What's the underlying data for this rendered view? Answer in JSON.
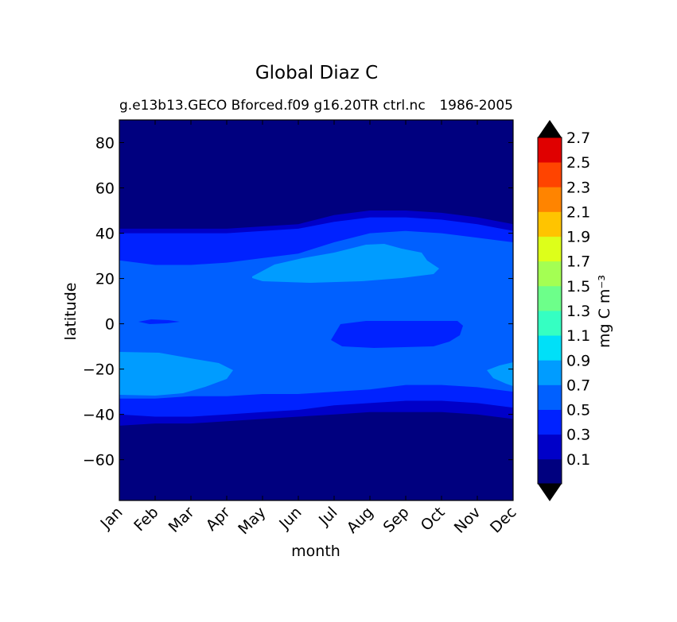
{
  "chart_data": {
    "type": "heatmap",
    "title": "Global Diaz C",
    "subtitle_left": "g.e13b13.GECO Bforced.f09 g16.20TR ctrl.nc",
    "subtitle_right": "1986-2005",
    "xlabel": "month",
    "ylabel": "latitude",
    "x_categories": [
      "Jan",
      "Feb",
      "Mar",
      "Apr",
      "May",
      "Jun",
      "Jul",
      "Aug",
      "Sep",
      "Oct",
      "Nov",
      "Dec"
    ],
    "ylim": [
      -78,
      90
    ],
    "y_ticks": [
      -60,
      -40,
      -20,
      0,
      20,
      40,
      60,
      80
    ],
    "y_tick_labels": [
      "−60",
      "−40",
      "−20",
      "0",
      "20",
      "40",
      "60",
      "80"
    ],
    "colorbar": {
      "label": "mg C m⁻³",
      "extend": "both",
      "tick_labels": [
        "0.1",
        "0.3",
        "0.5",
        "0.7",
        "0.9",
        "1.1",
        "1.3",
        "1.5",
        "1.7",
        "1.9",
        "2.1",
        "2.3",
        "2.5",
        "2.7"
      ],
      "levels": [
        0.0,
        0.2,
        0.4,
        0.6,
        0.8,
        1.0,
        1.2,
        1.4,
        1.6,
        1.8,
        2.0,
        2.2,
        2.4,
        2.6,
        2.8
      ],
      "colors": [
        "#00007f",
        "#0000c8",
        "#0022ff",
        "#0060ff",
        "#009cff",
        "#00e0f8",
        "#35ffc2",
        "#6dff8a",
        "#a4ff53",
        "#ddff1a",
        "#ffc400",
        "#ff8400",
        "#ff4400",
        "#e00000",
        "#a00000",
        "#7f0000"
      ],
      "under_color": "#000000",
      "over_color": "#000000"
    },
    "regions": [
      {
        "level": "0.1-0.3",
        "color": "#0000c8",
        "lat_south_edge": [
          -45,
          -44,
          -44,
          -43,
          -42,
          -41,
          -40,
          -39,
          -39,
          -39,
          -40,
          -42
        ],
        "lat_north_edge": [
          42,
          42,
          42,
          42,
          43,
          44,
          48,
          50,
          50,
          49,
          47,
          44
        ]
      },
      {
        "level": "0.3-0.5",
        "color": "#0022ff",
        "lat_south_edge": [
          -40,
          -41,
          -41,
          -40,
          -39,
          -38,
          -36,
          -35,
          -34,
          -34,
          -35,
          -37
        ],
        "lat_north_edge": [
          40,
          40,
          40,
          40,
          41,
          42,
          45,
          47,
          47,
          46,
          44,
          41
        ]
      },
      {
        "level": "0.5-0.7",
        "color": "#0060ff",
        "lat_south_edge": [
          -33,
          -33,
          -32,
          -32,
          -31,
          -31,
          -30,
          -29,
          -27,
          -27,
          -28,
          -30
        ],
        "lat_north_edge": [
          28,
          26,
          26,
          27,
          29,
          31,
          36,
          40,
          41,
          40,
          38,
          36
        ]
      }
    ],
    "patches": [
      {
        "level": "0.7-0.9",
        "color": "#009cff",
        "where": "Jan-Apr, -33 to -13"
      },
      {
        "level": "0.7-0.9",
        "color": "#009cff",
        "where": "May-Sep, 18 to 35"
      },
      {
        "level": "0.7-0.9",
        "color": "#009cff",
        "where": "Dec, -28 to -18"
      },
      {
        "level": "0.3-0.5",
        "color": "#0022ff",
        "where": "Jul-Oct, -11 to 1"
      },
      {
        "level": "0.3-0.5",
        "color": "#0022ff",
        "where": "Feb, 0 to 2"
      }
    ]
  }
}
